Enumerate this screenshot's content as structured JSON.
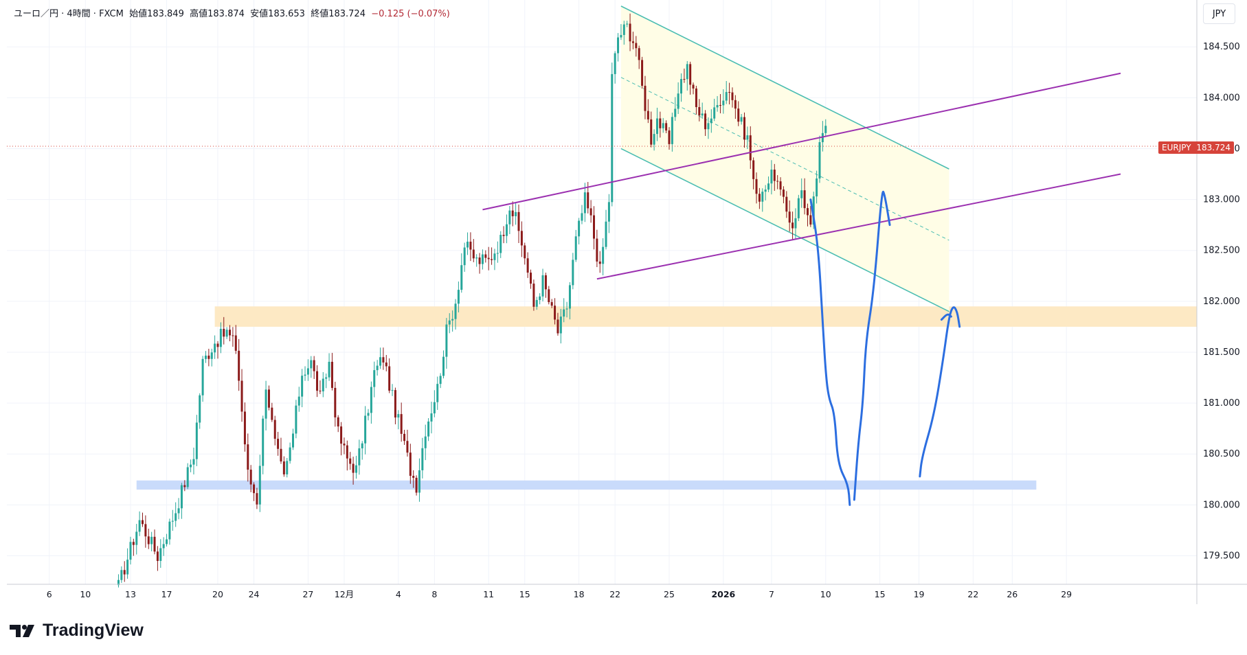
{
  "header": {
    "symbol_desc": "ユーロ／円 · 4時間 · FXCM",
    "open_label": "始値",
    "open": "183.849",
    "high_label": "高値",
    "high": "183.874",
    "low_label": "安値",
    "low": "183.653",
    "close_label": "終値",
    "close": "183.724",
    "change": "−0.125 (−0.07%)"
  },
  "currency_button": "JPY",
  "price_tag": {
    "symbol": "EURJPY",
    "value": "183.724"
  },
  "brand": "TradingView",
  "colors": {
    "up": "#26a69a",
    "down": "#8b1a1a",
    "grid": "#f0f3fa",
    "axis": "#131722",
    "channel_line": "#4bbdb2",
    "channel_fill": "#fffde6",
    "parallel": "#9b30b0",
    "support_zone": "#fde9c4",
    "low_zone": "#c9dbfb",
    "pen": "#2c6ee0",
    "price_tag": "#d6433a"
  },
  "chart_data": {
    "type": "candlestick",
    "symbol": "EURJPY",
    "timeframe": "4時間",
    "ylim": [
      179.22,
      184.96
    ],
    "y_ticks": [
      179.5,
      180.0,
      180.5,
      181.0,
      181.5,
      182.0,
      182.5,
      183.0,
      183.5,
      184.0,
      184.5
    ],
    "y_tick_labels": [
      "179.500",
      "180.000",
      "180.500",
      "181.000",
      "181.500",
      "182.000",
      "182.500",
      "183.000",
      "183.500",
      "184.000",
      "184.500"
    ],
    "x_ticks": [
      {
        "label": "6",
        "bar": -56,
        "bold": false
      },
      {
        "label": "10",
        "bar": -44,
        "bold": false
      },
      {
        "label": "13",
        "bar": -29,
        "bold": false
      },
      {
        "label": "17",
        "bar": -17,
        "bold": false
      },
      {
        "label": "20",
        "bar": 0,
        "bold": false
      },
      {
        "label": "24",
        "bar": 12,
        "bold": false
      },
      {
        "label": "27",
        "bar": 30,
        "bold": false
      },
      {
        "label": "12月",
        "bar": 42,
        "bold": false
      },
      {
        "label": "4",
        "bar": 60,
        "bold": false
      },
      {
        "label": "8",
        "bar": 72,
        "bold": false
      },
      {
        "label": "11",
        "bar": 90,
        "bold": false
      },
      {
        "label": "15",
        "bar": 102,
        "bold": false
      },
      {
        "label": "18",
        "bar": 120,
        "bold": false
      },
      {
        "label": "22",
        "bar": 132,
        "bold": false
      },
      {
        "label": "25",
        "bar": 150,
        "bold": false
      },
      {
        "label": "2026",
        "bar": 168,
        "bold": true
      },
      {
        "label": "7",
        "bar": 184,
        "bold": false
      },
      {
        "label": "10",
        "bar": 202,
        "bold": false
      },
      {
        "label": "15",
        "bar": 220,
        "bold": false
      },
      {
        "label": "19",
        "bar": 233,
        "bold": false
      },
      {
        "label": "22",
        "bar": 251,
        "bold": false
      },
      {
        "label": "26",
        "bar": 264,
        "bold": false
      },
      {
        "label": "29",
        "bar": 282,
        "bold": false
      }
    ],
    "last_price": 183.724,
    "anchors": [
      [
        -33,
        179.2
      ],
      [
        -26,
        179.85
      ],
      [
        -20,
        179.5
      ],
      [
        -14,
        179.95
      ],
      [
        -8,
        180.5
      ],
      [
        -5,
        181.4
      ],
      [
        -1,
        181.6
      ],
      [
        3,
        181.7
      ],
      [
        6,
        181.55
      ],
      [
        10,
        180.3
      ],
      [
        13,
        180.05
      ],
      [
        16,
        181.2
      ],
      [
        19,
        180.6
      ],
      [
        22,
        180.25
      ],
      [
        25,
        180.7
      ],
      [
        28,
        181.3
      ],
      [
        31,
        181.4
      ],
      [
        34,
        181.05
      ],
      [
        37,
        181.4
      ],
      [
        40,
        180.7
      ],
      [
        43,
        180.45
      ],
      [
        46,
        180.35
      ],
      [
        49,
        180.8
      ],
      [
        52,
        181.3
      ],
      [
        55,
        181.45
      ],
      [
        58,
        181.05
      ],
      [
        61,
        180.7
      ],
      [
        64,
        180.35
      ],
      [
        66,
        180.2
      ],
      [
        69,
        180.75
      ],
      [
        73,
        181.15
      ],
      [
        76,
        181.7
      ],
      [
        79,
        182.0
      ],
      [
        82,
        182.55
      ],
      [
        86,
        182.4
      ],
      [
        90,
        182.4
      ],
      [
        94,
        182.6
      ],
      [
        97,
        182.95
      ],
      [
        99,
        182.8
      ],
      [
        102,
        182.45
      ],
      [
        105,
        181.95
      ],
      [
        108,
        182.2
      ],
      [
        111,
        181.9
      ],
      [
        113,
        181.7
      ],
      [
        116,
        181.95
      ],
      [
        119,
        182.6
      ],
      [
        122,
        183.0
      ],
      [
        124,
        182.8
      ],
      [
        127,
        182.3
      ],
      [
        130,
        183.0
      ],
      [
        131,
        184.2
      ],
      [
        133,
        184.6
      ],
      [
        136,
        184.7
      ],
      [
        139,
        184.5
      ],
      [
        141,
        184.1
      ],
      [
        144,
        183.6
      ],
      [
        146,
        183.8
      ],
      [
        150,
        183.55
      ],
      [
        153,
        184.1
      ],
      [
        156,
        184.3
      ],
      [
        159,
        183.9
      ],
      [
        162,
        183.75
      ],
      [
        165,
        183.85
      ],
      [
        167,
        184.0
      ],
      [
        170,
        184.1
      ],
      [
        173,
        183.8
      ],
      [
        176,
        183.6
      ],
      [
        179,
        183.0
      ],
      [
        182,
        183.15
      ],
      [
        185,
        183.25
      ],
      [
        188,
        182.95
      ],
      [
        191,
        182.75
      ],
      [
        194,
        183.1
      ],
      [
        197,
        182.7
      ],
      [
        200,
        183.5
      ],
      [
        202,
        183.724
      ]
    ],
    "drawings": {
      "support_zone": {
        "y1": 181.75,
        "y2": 181.95,
        "x_from_bar": -1
      },
      "low_zone": {
        "y1": 180.15,
        "y2": 180.24,
        "x_from_bar": -27,
        "x_to_bar": 272
      },
      "descending_channel": {
        "top": [
          [
            134,
            184.9
          ],
          [
            243,
            183.3
          ]
        ],
        "bottom": [
          [
            134,
            183.5
          ],
          [
            243,
            181.9
          ]
        ],
        "mid": [
          [
            134,
            184.2
          ],
          [
            243,
            182.6
          ]
        ]
      },
      "ascending_lines": [
        {
          "from": [
            88,
            182.9
          ],
          "to": [
            300,
            184.24
          ]
        },
        {
          "from": [
            126,
            182.22
          ],
          "to": [
            300,
            183.25
          ]
        }
      ],
      "pen_strokes": [
        [
          [
            197,
            183.0
          ],
          [
            199.5,
            182.55
          ],
          [
            201,
            181.8
          ],
          [
            202,
            181.3
          ],
          [
            203,
            181.05
          ],
          [
            205,
            180.9
          ],
          [
            206,
            180.4
          ],
          [
            209.5,
            180.2
          ],
          [
            210,
            180.0
          ]
        ],
        [
          [
            211.5,
            180.05
          ],
          [
            212.8,
            180.6
          ],
          [
            214.4,
            181.0
          ],
          [
            215.3,
            181.6
          ],
          [
            218,
            182.1
          ],
          [
            220.7,
            183.1
          ],
          [
            221.6,
            183.05
          ],
          [
            223.3,
            182.75
          ]
        ],
        [
          [
            233.3,
            180.28
          ],
          [
            234,
            180.47
          ],
          [
            238,
            180.88
          ],
          [
            241,
            181.42
          ],
          [
            243,
            181.85
          ],
          [
            244.4,
            181.96
          ],
          [
            245.7,
            181.9
          ],
          [
            246.5,
            181.75
          ]
        ],
        [
          [
            240.5,
            181.82
          ],
          [
            242.5,
            181.88
          ],
          [
            243.7,
            181.85
          ]
        ]
      ]
    }
  }
}
